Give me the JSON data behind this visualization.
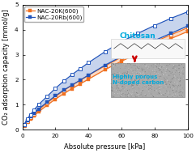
{
  "title": "",
  "xlabel": "Absolute pressure [kPa]",
  "ylabel": "CO₂ adsorption capacity [mmol/g]",
  "xlim": [
    0,
    100
  ],
  "ylim": [
    0.0,
    5.0
  ],
  "xticks": [
    0,
    20,
    40,
    60,
    80,
    100
  ],
  "yticks": [
    0.0,
    1.0,
    2.0,
    3.0,
    4.0,
    5.0
  ],
  "series": [
    {
      "label": "NAC-20K(600)",
      "color_line": "#F07020",
      "marker": "s",
      "adsorption_x": [
        1,
        3,
        5,
        7,
        10,
        15,
        20,
        25,
        30,
        35,
        40,
        50,
        60,
        70,
        80,
        90,
        100
      ],
      "adsorption_y": [
        0.13,
        0.3,
        0.44,
        0.56,
        0.72,
        0.98,
        1.22,
        1.44,
        1.64,
        1.83,
        2.02,
        2.4,
        2.74,
        3.06,
        3.37,
        3.65,
        3.93
      ],
      "desorption_x": [
        100,
        90,
        80,
        70,
        60,
        50,
        40,
        35,
        30,
        25,
        20,
        15,
        10,
        7,
        5,
        3,
        1
      ],
      "desorption_y": [
        4.08,
        3.8,
        3.52,
        3.22,
        2.9,
        2.55,
        2.18,
        1.98,
        1.78,
        1.56,
        1.32,
        1.07,
        0.8,
        0.62,
        0.48,
        0.33,
        0.16
      ]
    },
    {
      "label": "NAC-20Rb(600)",
      "color_line": "#2255BB",
      "marker": "s",
      "adsorption_x": [
        1,
        3,
        5,
        7,
        10,
        15,
        20,
        25,
        30,
        35,
        40,
        50,
        60,
        70,
        80,
        90,
        100
      ],
      "adsorption_y": [
        0.18,
        0.37,
        0.52,
        0.65,
        0.83,
        1.1,
        1.35,
        1.58,
        1.78,
        1.98,
        2.18,
        2.58,
        2.93,
        3.26,
        3.57,
        3.86,
        4.15
      ],
      "desorption_x": [
        100,
        90,
        80,
        70,
        60,
        50,
        40,
        35,
        30,
        25,
        20,
        15,
        10,
        7,
        5,
        3,
        1
      ],
      "desorption_y": [
        4.72,
        4.46,
        4.17,
        3.86,
        3.52,
        3.12,
        2.68,
        2.44,
        2.2,
        1.94,
        1.65,
        1.33,
        1.01,
        0.78,
        0.6,
        0.42,
        0.2
      ]
    }
  ],
  "annotation_chitosan": "Chitosan",
  "annotation_carbon": "Highly porous\nN-doped carbon",
  "arrow_color": "#CC0000",
  "background_color": "#ffffff",
  "legend_fontsize": 5.2,
  "axis_fontsize": 6.0,
  "tick_fontsize": 5.2
}
